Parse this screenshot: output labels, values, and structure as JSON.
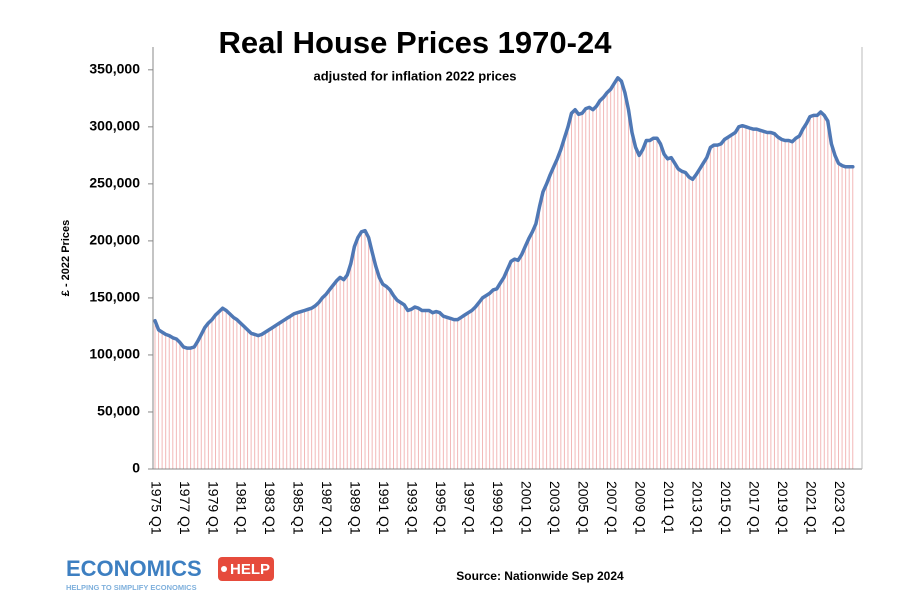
{
  "chart_data": {
    "type": "line",
    "title": "Real House Prices 1970-24",
    "subtitle": "adjusted for inflation 2022 prices",
    "y_label": "£ - 2022 Prices",
    "source": "Source: Nationwide Sep 2024",
    "logo": {
      "word": "ECONOMICS",
      "tag": "HELP",
      "tagline": "HELPING TO SIMPLIFY ECONOMICS"
    },
    "categories": [
      "1975 Q1",
      null,
      null,
      null,
      null,
      null,
      null,
      null,
      "1977 Q1",
      null,
      null,
      null,
      null,
      null,
      null,
      null,
      "1979 Q1",
      null,
      null,
      null,
      null,
      null,
      null,
      null,
      "1981 Q1",
      null,
      null,
      null,
      null,
      null,
      null,
      null,
      "1983 Q1",
      null,
      null,
      null,
      null,
      null,
      null,
      null,
      "1985 Q1",
      null,
      null,
      null,
      null,
      null,
      null,
      null,
      "1987 Q1",
      null,
      null,
      null,
      null,
      null,
      null,
      null,
      "1989 Q1",
      null,
      null,
      null,
      null,
      null,
      null,
      null,
      "1991 Q1",
      null,
      null,
      null,
      null,
      null,
      null,
      null,
      "1993 Q1",
      null,
      null,
      null,
      null,
      null,
      null,
      null,
      "1995 Q1",
      null,
      null,
      null,
      null,
      null,
      null,
      null,
      "1997 Q1",
      null,
      null,
      null,
      null,
      null,
      null,
      null,
      "1999 Q1",
      null,
      null,
      null,
      null,
      null,
      null,
      null,
      "2001 Q1",
      null,
      null,
      null,
      null,
      null,
      null,
      null,
      "2003 Q1",
      null,
      null,
      null,
      null,
      null,
      null,
      null,
      "2005 Q1",
      null,
      null,
      null,
      null,
      null,
      null,
      null,
      "2007 Q1",
      null,
      null,
      null,
      null,
      null,
      null,
      null,
      "2009 Q1",
      null,
      null,
      null,
      null,
      null,
      null,
      null,
      "2011 Q1",
      null,
      null,
      null,
      null,
      null,
      null,
      null,
      "2013 Q1",
      null,
      null,
      null,
      null,
      null,
      null,
      null,
      "2015 Q1",
      null,
      null,
      null,
      null,
      null,
      null,
      null,
      "2017 Q1",
      null,
      null,
      null,
      null,
      null,
      null,
      null,
      "2019 Q1",
      null,
      null,
      null,
      null,
      null,
      null,
      null,
      "2021 Q1",
      null,
      null,
      null,
      null,
      null,
      null,
      null,
      "2023 Q1",
      null,
      null,
      null,
      null
    ],
    "series": [
      {
        "name": "Real house price",
        "color": "#4f78b5",
        "drop_color": "#f2b8b8",
        "values": [
          130000,
          122000,
          120000,
          118000,
          117000,
          115000,
          114000,
          111000,
          107000,
          106000,
          106000,
          107000,
          112000,
          118000,
          124000,
          128000,
          131000,
          135000,
          138000,
          141000,
          139000,
          136000,
          133000,
          131000,
          128000,
          125000,
          122000,
          119000,
          118000,
          117000,
          118000,
          120000,
          122000,
          124000,
          126000,
          128000,
          130000,
          132000,
          134000,
          136000,
          137000,
          138000,
          139000,
          140000,
          141000,
          143000,
          146000,
          150000,
          153000,
          157000,
          161000,
          165000,
          168000,
          166000,
          170000,
          180000,
          195000,
          203000,
          208000,
          209000,
          203000,
          190000,
          178000,
          168000,
          162000,
          160000,
          157000,
          152000,
          148000,
          146000,
          144000,
          139000,
          140000,
          142000,
          141000,
          139000,
          139000,
          139000,
          137000,
          138000,
          137000,
          134000,
          133000,
          132000,
          131000,
          131000,
          133000,
          135000,
          137000,
          139000,
          142000,
          146000,
          150000,
          152000,
          154000,
          157000,
          158000,
          163000,
          168000,
          175000,
          182000,
          184000,
          183000,
          188000,
          195000,
          202000,
          208000,
          215000,
          230000,
          243000,
          250000,
          258000,
          265000,
          272000,
          280000,
          290000,
          300000,
          312000,
          315000,
          311000,
          312000,
          316000,
          317000,
          315000,
          318000,
          323000,
          326000,
          330000,
          333000,
          338000,
          343000,
          340000,
          330000,
          315000,
          295000,
          282000,
          275000,
          280000,
          288000,
          288000,
          290000,
          290000,
          285000,
          276000,
          272000,
          273000,
          268000,
          263000,
          261000,
          260000,
          256000,
          254000,
          258000,
          263000,
          268000,
          273000,
          282000,
          284000,
          284000,
          285000,
          289000,
          291000,
          293000,
          295000,
          300000,
          301000,
          300000,
          299000,
          298000,
          298000,
          297000,
          296000,
          295000,
          295000,
          294000,
          291000,
          289000,
          288000,
          288000,
          287000,
          290000,
          292000,
          298000,
          303000,
          309000,
          310000,
          310000,
          313000,
          310000,
          305000,
          285000,
          275000,
          268000,
          266000,
          265000,
          265000,
          265000
        ]
      }
    ],
    "ylim": [
      0,
      370000
    ],
    "yticks": [
      0,
      {
        "value": 50000,
        "label": "50,000"
      },
      {
        "value": 100000,
        "label": "100,000"
      },
      {
        "value": 150000,
        "label": "150,000"
      },
      {
        "value": 200000,
        "label": "200,000"
      },
      {
        "value": 250000,
        "label": "250,000"
      },
      {
        "value": 300000,
        "label": "300,000"
      },
      {
        "value": 350000,
        "label": "350,000"
      }
    ],
    "grid": false
  }
}
